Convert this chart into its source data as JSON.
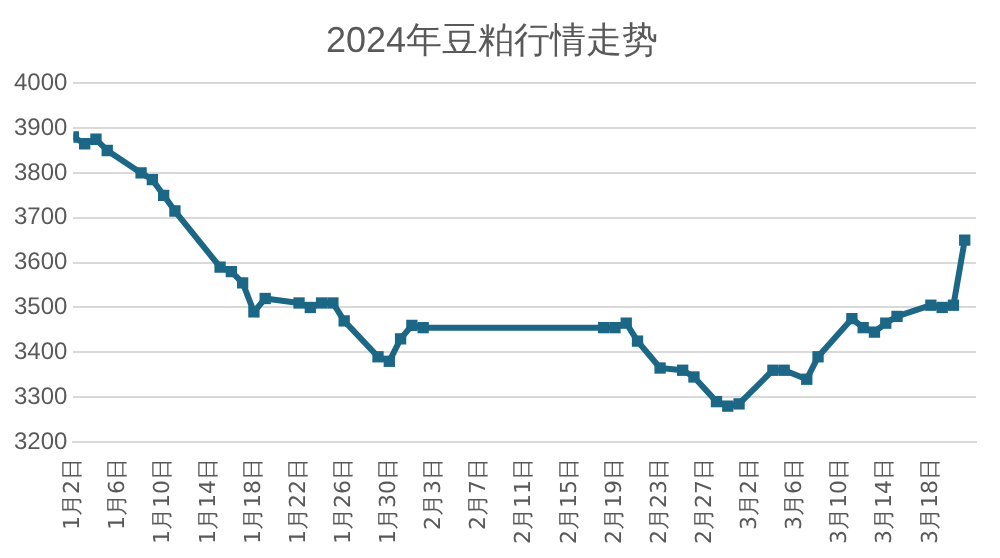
{
  "chart_data": {
    "type": "line",
    "title": "2024年豆粕行情走势",
    "x": [
      "--01-02",
      "--01-03",
      "--01-04",
      "--01-05",
      "--01-08",
      "--01-09",
      "--01-10",
      "--01-11",
      "--01-15",
      "--01-16",
      "--01-17",
      "--01-18",
      "--01-19",
      "--01-22",
      "--01-23",
      "--01-24",
      "--01-25",
      "--01-26",
      "--01-29",
      "--01-30",
      "--01-31",
      "--02-01",
      "--02-02",
      "--02-18",
      "--02-19",
      "--02-20",
      "--02-21",
      "--02-23",
      "--02-25",
      "--02-26",
      "--02-28",
      "--02-29",
      "--03-01",
      "--03-04",
      "--03-05",
      "--03-07",
      "--03-08",
      "--03-11",
      "--03-12",
      "--03-13",
      "--03-14",
      "--03-15",
      "--03-18",
      "--03-19",
      "--03-20",
      "--03-21"
    ],
    "series": [
      {
        "color": "#1b6785",
        "values": [
          3880,
          3865,
          3875,
          3850,
          3800,
          3785,
          3750,
          3715,
          3590,
          3580,
          3555,
          3490,
          3520,
          3510,
          3500,
          3510,
          3510,
          3470,
          3390,
          3380,
          3430,
          3460,
          3455,
          3455,
          3455,
          3465,
          3425,
          3365,
          3360,
          3345,
          3290,
          3280,
          3285,
          3360,
          3360,
          3340,
          3390,
          3475,
          3455,
          3445,
          3465,
          3480,
          3505,
          3500,
          3505,
          3650
        ]
      }
    ],
    "xlim": [
      "--01-02",
      "--03-22"
    ],
    "xticks": [
      {
        "value": "--01-02",
        "label": "1月2日"
      },
      {
        "value": "--01-06",
        "label": "1月6日"
      },
      {
        "value": "--01-10",
        "label": "1月10日"
      },
      {
        "value": "--01-14",
        "label": "1月14日"
      },
      {
        "value": "--01-18",
        "label": "1月18日"
      },
      {
        "value": "--01-22",
        "label": "1月22日"
      },
      {
        "value": "--01-26",
        "label": "1月26日"
      },
      {
        "value": "--01-30",
        "label": "1月30日"
      },
      {
        "value": "--02-03",
        "label": "2月3日"
      },
      {
        "value": "--02-07",
        "label": "2月7日"
      },
      {
        "value": "--02-11",
        "label": "2月11日"
      },
      {
        "value": "--02-15",
        "label": "2月15日"
      },
      {
        "value": "--02-19",
        "label": "2月19日"
      },
      {
        "value": "--02-23",
        "label": "2月23日"
      },
      {
        "value": "--02-27",
        "label": "2月27日"
      },
      {
        "value": "--03-02",
        "label": "3月2日"
      },
      {
        "value": "--03-06",
        "label": "3月6日"
      },
      {
        "value": "--03-10",
        "label": "3月10日"
      },
      {
        "value": "--03-14",
        "label": "3月14日"
      },
      {
        "value": "--03-18",
        "label": "3月18日"
      }
    ],
    "ylim": [
      3200,
      4000
    ],
    "yticks": [
      3200,
      3300,
      3400,
      3500,
      3600,
      3700,
      3800,
      3900,
      4000
    ],
    "grid": "y",
    "marker": "square",
    "line_style": "solid"
  }
}
